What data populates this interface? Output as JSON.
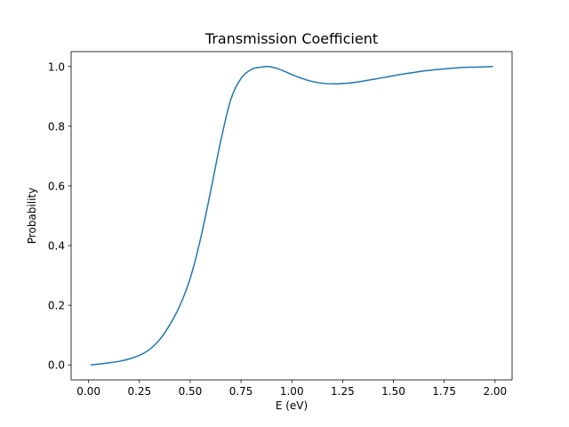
{
  "chart_data": {
    "type": "line",
    "title": "Transmission Coefficient",
    "xlabel": "E (eV)",
    "ylabel": "Probability",
    "xlim": [
      -0.086,
      2.084
    ],
    "ylim": [
      -0.05,
      1.05
    ],
    "xticks": [
      0.0,
      0.25,
      0.5,
      0.75,
      1.0,
      1.25,
      1.5,
      1.75,
      2.0
    ],
    "xtick_labels": [
      "0.00",
      "0.25",
      "0.50",
      "0.75",
      "1.00",
      "1.25",
      "1.50",
      "1.75",
      "2.00"
    ],
    "yticks": [
      0.0,
      0.2,
      0.4,
      0.6,
      0.8,
      1.0
    ],
    "ytick_labels": [
      "0.0",
      "0.2",
      "0.4",
      "0.6",
      "0.8",
      "1.0"
    ],
    "grid": false,
    "legend": "none",
    "series": [
      {
        "color": "#1f77b4",
        "x": [
          0.01,
          0.05,
          0.1,
          0.15,
          0.2,
          0.25,
          0.3,
          0.35,
          0.4,
          0.45,
          0.5,
          0.55,
          0.6,
          0.65,
          0.7,
          0.75,
          0.8,
          0.85,
          0.88,
          0.92,
          0.96,
          1.0,
          1.05,
          1.1,
          1.15,
          1.2,
          1.25,
          1.3,
          1.35,
          1.4,
          1.45,
          1.5,
          1.55,
          1.6,
          1.65,
          1.7,
          1.75,
          1.8,
          1.85,
          1.9,
          1.95,
          1.99
        ],
        "y": [
          0.0,
          0.003,
          0.007,
          0.012,
          0.02,
          0.032,
          0.052,
          0.085,
          0.135,
          0.2,
          0.29,
          0.42,
          0.58,
          0.75,
          0.89,
          0.96,
          0.99,
          0.998,
          1.0,
          0.995,
          0.985,
          0.973,
          0.96,
          0.95,
          0.944,
          0.942,
          0.943,
          0.946,
          0.951,
          0.957,
          0.963,
          0.969,
          0.975,
          0.98,
          0.985,
          0.989,
          0.992,
          0.995,
          0.997,
          0.998,
          0.999,
          1.0
        ]
      }
    ]
  }
}
